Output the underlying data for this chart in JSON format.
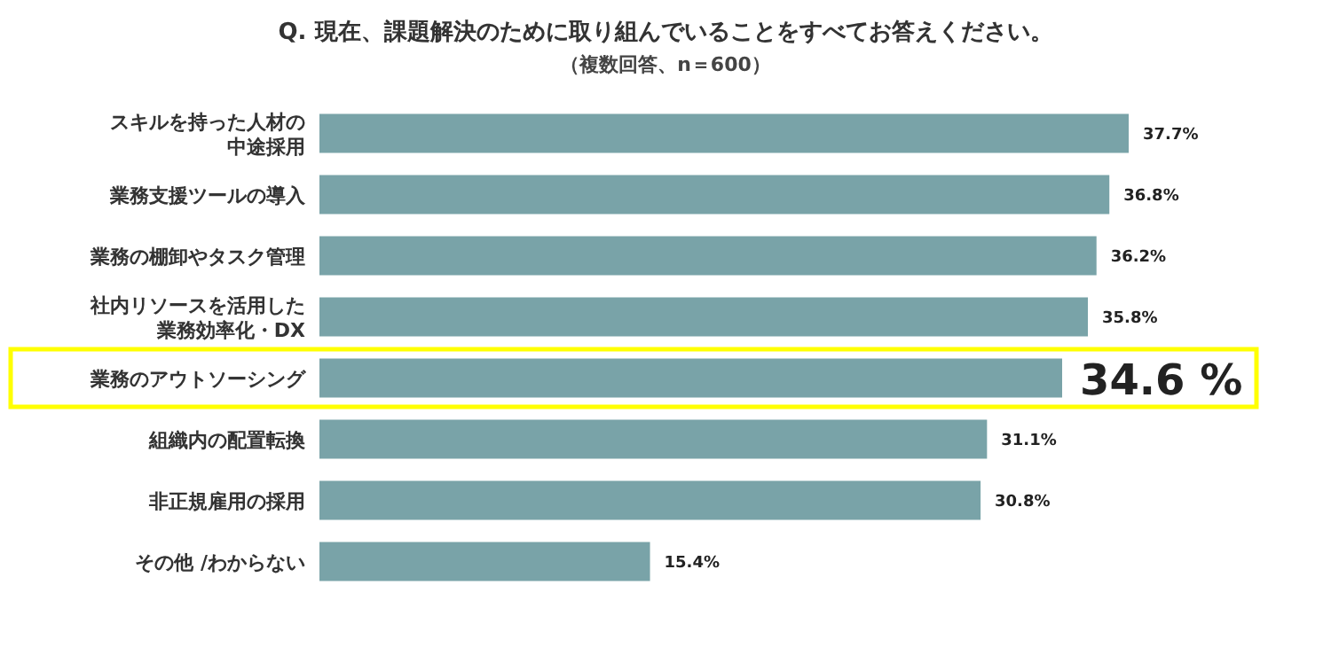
{
  "chart_data": {
    "type": "bar",
    "orientation": "horizontal",
    "title": "Q. 現在、課題解決のために取り組んでいることをすべてお答えください。",
    "subtitle": "（複数回答、n＝600）",
    "categories": [
      "スキルを持った人材の中途採用",
      "業務支援ツールの導入",
      "業務の棚卸やタスク管理",
      "社内リソースを活用した業務効率化・DX",
      "業務のアウトソーシング",
      "組織内の配置転換",
      "非正規雇用の採用",
      "その他 /わからない"
    ],
    "values": [
      37.7,
      36.8,
      36.2,
      35.8,
      34.6,
      31.1,
      30.8,
      15.4
    ],
    "value_labels": [
      "37.7%",
      "36.8%",
      "36.2%",
      "35.8%",
      null,
      "31.1%",
      "30.8%",
      "15.4%"
    ],
    "color": "#79a3a8",
    "annotations": [
      {
        "text": "34.6 %",
        "x": 34.6,
        "y": "業務のアウトソーシング"
      }
    ]
  }
}
